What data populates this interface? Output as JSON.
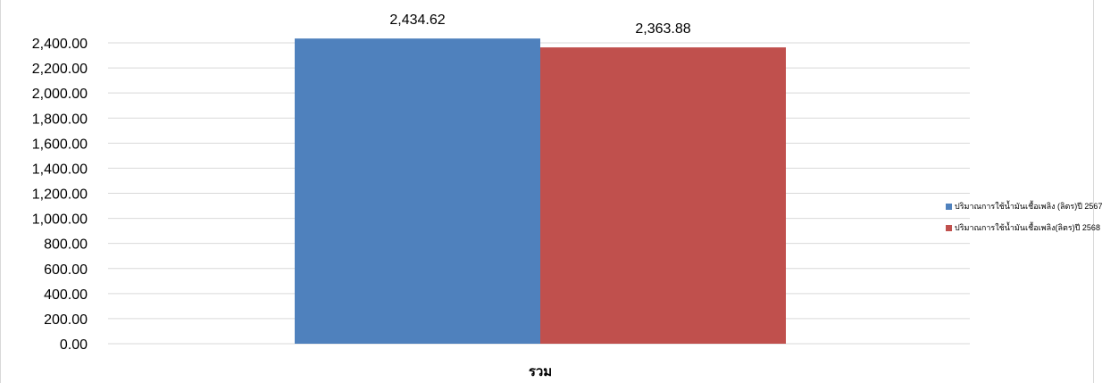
{
  "chart_data": {
    "type": "bar",
    "categories": [
      "รวม"
    ],
    "series": [
      {
        "name": "ปริมาณการใช้น้ำมันเชื้อเพลิง (ลิตร)ปี 2567",
        "values": [
          2434.62
        ],
        "color": "#4f81bd",
        "label": "2,434.62"
      },
      {
        "name": "ปริมาณการใช้น้ำมันเชื้อเพลิง(ลิตร)ปี 2568",
        "values": [
          2363.88
        ],
        "color": "#c0504d",
        "label": "2,363.88"
      }
    ],
    "ylim": [
      0,
      2400
    ],
    "yticks": [
      "0.00",
      "200.00",
      "400.00",
      "600.00",
      "800.00",
      "1,000.00",
      "1,200.00",
      "1,400.00",
      "1,600.00",
      "1,800.00",
      "2,000.00",
      "2,200.00",
      "2,400.00"
    ],
    "grid": true,
    "legend_position": "right",
    "gridline_color": "#d9d9d9"
  }
}
